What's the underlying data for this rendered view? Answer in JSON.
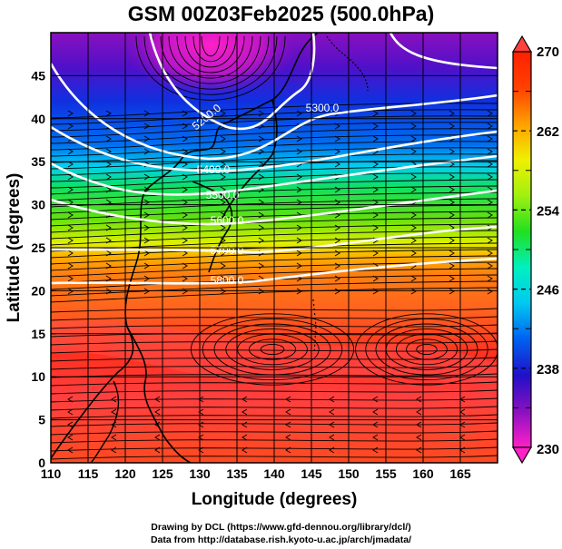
{
  "title": "GSM 00Z03Feb2025 (500.0hPa)",
  "credits": {
    "line1": "Drawing by DCL (https://www.gfd-dennou.org/library/dcl/)",
    "line2": "Data from http://database.rish.kyoto-u.ac.jp/arch/jmadata/"
  },
  "map": {
    "xlabel": "Longitude (degrees)",
    "ylabel": "Latitude  (degrees)",
    "lon_range": [
      110,
      170
    ],
    "lat_range": [
      0,
      50
    ],
    "lon_ticks": [
      "110",
      "115",
      "120",
      "125",
      "130",
      "135",
      "140",
      "145",
      "150",
      "155",
      "160",
      "165"
    ],
    "lat_ticks": [
      "0",
      "5",
      "10",
      "15",
      "20",
      "25",
      "30",
      "35",
      "40",
      "45"
    ],
    "shaded_field": "temperature (K)",
    "contour_field": "geopotential height (m)",
    "contour_labels": [
      "5200.0",
      "5300.0",
      "5400.0",
      "5500.0",
      "5600.0",
      "5700.0",
      "5800.0"
    ],
    "overlay": "wind streamlines",
    "grid": true
  },
  "colorbar": {
    "min": 230,
    "max": 270,
    "tick_labels": [
      "270",
      "262",
      "254",
      "246",
      "238",
      "230"
    ],
    "extend": "both",
    "colors": [
      "#ff20c8",
      "#8a10c0",
      "#2010c8",
      "#0060f0",
      "#00c8f0",
      "#00f0c0",
      "#20e020",
      "#a0f010",
      "#f0f000",
      "#ffa000",
      "#ff4000",
      "#ff2000"
    ]
  }
}
